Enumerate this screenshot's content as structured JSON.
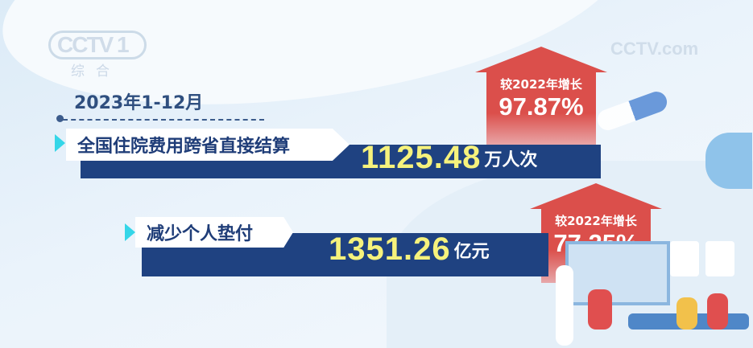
{
  "logo": {
    "channel": "CCTV 1",
    "sub": "综合"
  },
  "watermark": "CCTV.com",
  "period": "2023年1-12月",
  "stats": [
    {
      "label": "全国住院费用跨省直接结算",
      "value": "1125.48",
      "unit": "万人次",
      "compare": "较2022年增长",
      "growth": "97.87%"
    },
    {
      "label": "减少个人垫付",
      "value": "1351.26",
      "unit": "亿元",
      "compare": "较2022年增长",
      "growth": "77.25%"
    }
  ],
  "colors": {
    "bar": "#1f4281",
    "value": "#f6f27c",
    "arrow": "#db4f4b",
    "accent": "#35d6e8"
  }
}
